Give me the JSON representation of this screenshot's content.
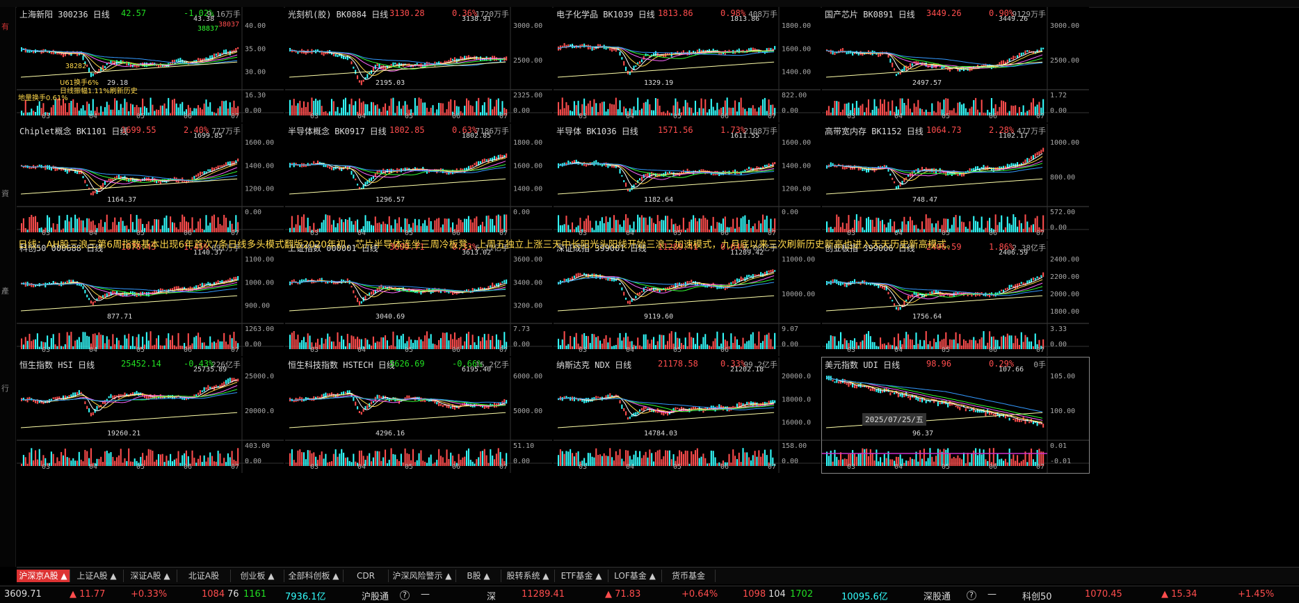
{
  "colors": {
    "up": "#ff4d4d",
    "down": "#22dd22",
    "cyan": "#33ffff",
    "ma": [
      "#ffffff",
      "#ffd84a",
      "#ff66ff",
      "#33ff33",
      "#3399ff",
      "#ffffaa"
    ]
  },
  "left_strip": [
    "有",
    "資",
    "產",
    "行"
  ],
  "overlay_note": "日线：AH股三浪三第6周指数基本出现6年首次7条日线多头模式翻版2020年初，芯片半导体连坐三周冷板凳，上周五独立上涨三天中长阳光头阳线开始三浪三加速模式，九月底以来三次刷新历史新高也进入天天历史新高模式。",
  "date_label": "2025/07/25/五",
  "panels": [
    {
      "name": "上海新阳 300236 日线",
      "price": "42.57",
      "pct": "-1.02%",
      "dir": "down",
      "vol": "9.16万手",
      "axis": [
        "40.00",
        "35.00",
        "30.00"
      ],
      "vaxis": [
        "16.30",
        "0.00"
      ],
      "hi": "43.38",
      "lo": "29.18",
      "months": [
        "03",
        "04",
        "05",
        "06",
        "07"
      ],
      "note1": "U61换手6%",
      "note2": "日线振幅1.11%刷新历史",
      "note3": "地量换手0.61%",
      "tags": [
        "38837",
        "38037",
        "38282"
      ]
    },
    {
      "name": "光刻机(胶) BK0884 日线",
      "price": "3130.28",
      "pct": "0.36%",
      "dir": "up",
      "vol": "1720万手",
      "axis": [
        "3000.00",
        "2500.00"
      ],
      "vaxis": [
        "2325.00",
        "0.00"
      ],
      "hi": "3138.91",
      "lo": "2195.03",
      "months": [
        "03",
        "04",
        "05",
        "06",
        "07"
      ]
    },
    {
      "name": "电子化学品 BK1039 日线",
      "price": "1813.86",
      "pct": "0.98%",
      "dir": "up",
      "vol": "408万手",
      "axis": [
        "1800.00",
        "1600.00",
        "1400.00"
      ],
      "vaxis": [
        "822.00",
        "0.00"
      ],
      "hi": "1813.86",
      "lo": "1329.19",
      "months": [
        "03",
        "04",
        "05",
        "06",
        "07"
      ]
    },
    {
      "name": "国产芯片 BK0891 日线",
      "price": "3449.26",
      "pct": "0.90%",
      "dir": "up",
      "vol": "9129万手",
      "axis": [
        "3000.00",
        "2500.00"
      ],
      "vaxis": [
        "1.72",
        "0.00"
      ],
      "hi": "3449.26",
      "lo": "2497.57",
      "months": [
        "03",
        "04",
        "05",
        "06",
        "07"
      ]
    },
    {
      "name": "Chiplet概念 BK1101 日线",
      "price": "1699.55",
      "pct": "2.40%",
      "dir": "up",
      "vol": "777万手",
      "axis": [
        "1600.00",
        "1400.00",
        "1200.00"
      ],
      "vaxis": [
        "0.00"
      ],
      "hi": "1699.85",
      "lo": "1164.37",
      "months": [
        "03",
        "04",
        "05",
        "06",
        "07"
      ]
    },
    {
      "name": "半导体概念 BK0917 日线",
      "price": "1802.85",
      "pct": "0.63%",
      "dir": "up",
      "vol": "7186万手",
      "axis": [
        "1800.00",
        "1600.00",
        "1400.00"
      ],
      "vaxis": [
        "0.00"
      ],
      "hi": "1802.85",
      "lo": "1296.57",
      "months": [
        "03",
        "04",
        "05",
        "06",
        "07"
      ]
    },
    {
      "name": "半导体 BK1036 日线",
      "price": "1571.56",
      "pct": "1.73%",
      "dir": "up",
      "vol": "2108万手",
      "axis": [
        "1600.00",
        "1400.00",
        "1200.00"
      ],
      "vaxis": [
        "0.00"
      ],
      "hi": "1611.55",
      "lo": "1182.64",
      "months": [
        "03",
        "04",
        "05",
        "06",
        "07"
      ]
    },
    {
      "name": "高带宽内存 BK1152 日线",
      "price": "1064.73",
      "pct": "2.28%",
      "dir": "up",
      "vol": "477万手",
      "axis": [
        "1000.00",
        "800.00"
      ],
      "vaxis": [
        "572.00",
        "0.00"
      ],
      "hi": "1102.17",
      "lo": "748.47",
      "months": [
        "03",
        "04",
        "05",
        "06",
        "07"
      ]
    },
    {
      "name": "科创50 000688 日线",
      "price": "1070.45",
      "pct": "1.45%",
      "dir": "up",
      "vol": "691万手",
      "axis": [
        "1100.00",
        "1000.00",
        "900.00"
      ],
      "vaxis": [
        "1263.00",
        "0.00"
      ],
      "hi": "1140.37",
      "lo": "877.71",
      "months": [
        "03",
        "04",
        "05",
        "06",
        "07"
      ]
    },
    {
      "name": "上证指数 000001 日线",
      "price": "3609.71",
      "pct": "0.33%",
      "dir": "up",
      "vol": "6.11亿手",
      "axis": [
        "3600.00",
        "3400.00",
        "3200.00"
      ],
      "vaxis": [
        "7.73",
        "0.00"
      ],
      "hi": "3613.02",
      "lo": "3040.69",
      "months": [
        "03",
        "04",
        "05",
        "06",
        "07"
      ]
    },
    {
      "name": "深证成指 399001 日线",
      "price": "11289.41",
      "pct": "0.64%",
      "dir": "up",
      "vol": "6.88亿手",
      "axis": [
        "11000.00",
        "10000.00"
      ],
      "vaxis": [
        "9.07",
        "0.00"
      ],
      "hi": "11289.42",
      "lo": "9119.60",
      "months": [
        "03",
        "04",
        "05",
        "06"
      ]
    },
    {
      "name": "创业板指 399006 日线",
      "price": "2406.59",
      "pct": "1.86%",
      "dir": "up",
      "vol": "2.38亿手",
      "axis": [
        "2400.00",
        "2200.00",
        "2000.00",
        "1800.00"
      ],
      "vaxis": [
        "3.33",
        "0.00"
      ],
      "hi": "2406.59",
      "lo": "1756.64",
      "months": [
        "03",
        "04",
        "05",
        "06",
        "07"
      ]
    },
    {
      "name": "恒生指数 HSI 日线",
      "price": "25452.14",
      "pct": "-0.43%",
      "dir": "down",
      "vol": "226亿手",
      "axis": [
        "25000.0",
        "20000.0"
      ],
      "vaxis": [
        "403.00",
        "0.00"
      ],
      "hi": "25735.89",
      "lo": "19260.21",
      "months": [
        "03",
        "04",
        "05",
        "06",
        "07"
      ]
    },
    {
      "name": "恒生科技指数 HSTECH 日线",
      "price": "5626.69",
      "pct": "-0.66%",
      "dir": "down",
      "vol": "15.2亿手",
      "axis": [
        "6000.00",
        "5000.00"
      ],
      "vaxis": [
        "51.10",
        "0.00"
      ],
      "hi": "6195.40",
      "lo": "4296.16",
      "months": [
        "03",
        "04",
        "05",
        "06",
        "07"
      ]
    },
    {
      "name": "纳斯达克 NDX 日线",
      "price": "21178.58",
      "pct": "0.33%",
      "dir": "up",
      "vol": "99.2亿手",
      "axis": [
        "20000.0",
        "18000.0",
        "16000.0"
      ],
      "vaxis": [
        "158.00",
        "0.00"
      ],
      "hi": "21202.18",
      "lo": "14784.03",
      "months": [
        "03",
        "04",
        "05",
        "06",
        "07"
      ]
    },
    {
      "name": "美元指数 UDI 日线",
      "price": "98.96",
      "pct": "0.29%",
      "dir": "up",
      "vol": "0手",
      "axis": [
        "105.00",
        "100.00"
      ],
      "vaxis": [
        "0.01",
        "-0.01"
      ],
      "hi": "107.66",
      "lo": "96.37",
      "months": [
        "03",
        "04",
        "05",
        "06",
        "07"
      ]
    }
  ],
  "tabs": [
    "沪深京A股 ▲",
    "上证A股 ▲",
    "深证A股 ▲",
    "北证A股",
    "创业板 ▲",
    "全部科创板 ▲",
    "CDR",
    "沪深风险警示 ▲",
    "B股 ▲",
    "股转系统 ▲",
    "ETF基金 ▲",
    "LOF基金 ▲",
    "货币基金"
  ],
  "status": {
    "sh_index": "3609.71",
    "sh_chg": "▲ 11.77",
    "sh_pct": "+0.33%",
    "sh_up": "1084",
    "sh_flat": "76",
    "sh_down": "1161",
    "sh_amt": "7936.1亿",
    "hgt_label": "沪股通",
    "hgt_val": "—",
    "sz_label": "深",
    "sz_index": "11289.41",
    "sz_chg": "▲ 71.83",
    "sz_pct": "+0.64%",
    "sz_up": "1098",
    "sz_flat": "104",
    "sz_down": "1702",
    "sz_amt": "10095.6亿",
    "sgt_label": "深股通",
    "sgt_val": "—",
    "kc_label": "科创50",
    "kc_index": "1070.45",
    "kc_chg": "▲ 15.34",
    "kc_pct": "+1.45%"
  }
}
